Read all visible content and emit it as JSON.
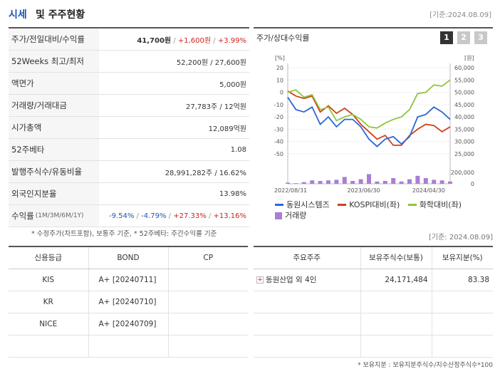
{
  "header": {
    "title1": "시세",
    "title2": "및 주주현황",
    "date": "[기준:2024.08.09]"
  },
  "stats": [
    {
      "label": "주가/전일대비/수익률"
    },
    {
      "label": "52Weeks 최고/최저",
      "value": "52,200원 / 27,600원"
    },
    {
      "label": "액면가",
      "value": "5,000원"
    },
    {
      "label": "거래량/거래대금",
      "value": "27,783주 / 12억원"
    },
    {
      "label": "시가총액",
      "value": "12,089억원"
    },
    {
      "label": "52주베타",
      "value": "1.08"
    },
    {
      "label": "발행주식수/유동비율",
      "value": "28,991,282주 / 16.62%"
    },
    {
      "label": "외국인지분율",
      "value": "13.98%"
    },
    {
      "label": "수익률",
      "sublabel": "(1M/3M/6M/1Y)"
    }
  ],
  "price": {
    "price": "41,700원",
    "change": "+1,600원",
    "rate": "+3.99%"
  },
  "returns": {
    "m1": "-9.54%",
    "m3": "-4.79%",
    "m6": "+27.33%",
    "y1": "+13.16%"
  },
  "note1": "* 수정주가(차트포함), 보통주 기준, * 52주베타: 주간수익률 기준",
  "chart": {
    "title": "주가/상대수익률",
    "buttons": [
      "1",
      "2",
      "3"
    ],
    "left_unit": "[%]",
    "right_unit": "[원]",
    "left_ticks": [
      "20",
      "10",
      "0",
      "-10",
      "-20",
      "-30",
      "-40",
      "-50"
    ],
    "right_ticks": [
      "60,000",
      "55,000",
      "50,000",
      "45,000",
      "40,000",
      "35,000",
      "30,000",
      "25,000"
    ],
    "vol_ticks": [
      "200,000",
      "0"
    ],
    "x_ticks": [
      "2022/08/31",
      "2023/06/30",
      "2024/04/30"
    ],
    "legend": [
      "동원시스템즈",
      "KOSPI대비(좌)",
      "화학대비(좌)",
      "거래량"
    ],
    "colors": {
      "stock": "#2b67d9",
      "kospi": "#d0401a",
      "chem": "#8ec63f",
      "volume": "#a97ed6"
    }
  },
  "chart_data": {
    "type": "line",
    "xlabel": "",
    "ylabel": "",
    "ylim": [
      -50,
      20
    ],
    "ylim_right": [
      25000,
      60000
    ],
    "series": [
      {
        "name": "동원시스템즈",
        "axis": "right",
        "values": [
          48000,
          43000,
          42000,
          44000,
          37000,
          40000,
          36000,
          39000,
          39000,
          36000,
          31000,
          28000,
          31000,
          32000,
          29000,
          32000,
          40000,
          41000,
          44000,
          42000,
          39000
        ]
      },
      {
        "name": "KOSPI대비(좌)",
        "axis": "left",
        "values": [
          1,
          -3,
          -5,
          -3,
          -16,
          -11,
          -17,
          -13,
          -18,
          -26,
          -32,
          -38,
          -35,
          -43,
          -43,
          -35,
          -30,
          -26,
          -27,
          -32,
          -28
        ]
      },
      {
        "name": "화학대비(좌)",
        "axis": "left",
        "values": [
          0,
          2,
          -4,
          -2,
          -14,
          -12,
          -23,
          -20,
          -18,
          -22,
          -28,
          -29,
          -25,
          -22,
          -20,
          -14,
          -1,
          0,
          6,
          5,
          10
        ]
      },
      {
        "name": "거래량",
        "axis": "volume",
        "values": [
          20000,
          10000,
          30000,
          60000,
          50000,
          60000,
          70000,
          120000,
          50000,
          80000,
          170000,
          40000,
          50000,
          100000,
          40000,
          80000,
          140000,
          100000,
          70000,
          60000,
          40000
        ]
      }
    ]
  },
  "date2": "[기준: 2024.08.09]",
  "credit": {
    "headers": [
      "신용등급",
      "BOND",
      "CP"
    ],
    "rows": [
      {
        "agency": "KIS",
        "bond": "A+  [20240711]",
        "cp": ""
      },
      {
        "agency": "KR",
        "bond": "A+  [20240710]",
        "cp": ""
      },
      {
        "agency": "NICE",
        "bond": "A+  [20240709]",
        "cp": ""
      },
      {
        "agency": "",
        "bond": "",
        "cp": ""
      }
    ]
  },
  "holders": {
    "headers": [
      "주요주주",
      "보유주식수(보통)",
      "보유지분(%)"
    ],
    "rows": [
      {
        "name": "동원산업 외 4인",
        "shares": "24,171,484",
        "pct": "83.38"
      },
      {
        "name": "",
        "shares": "",
        "pct": ""
      },
      {
        "name": "",
        "shares": "",
        "pct": ""
      },
      {
        "name": "",
        "shares": "",
        "pct": ""
      }
    ]
  },
  "note2": "* 보유지분 : 보유지분주식수/지수산정주식수*100"
}
